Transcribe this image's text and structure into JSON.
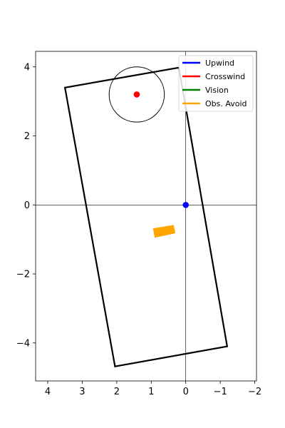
{
  "chart_data": {
    "type": "scatter",
    "title": "",
    "xlabel": "",
    "ylabel": "",
    "x_axis_inverted": true,
    "xlim": [
      4.35,
      -2.05
    ],
    "ylim": [
      -5.1,
      4.45
    ],
    "xticks": [
      4,
      3,
      2,
      1,
      0,
      -1,
      -2
    ],
    "yticks": [
      4,
      2,
      0,
      -2,
      -4
    ],
    "xtick_labels": [
      "4",
      "3",
      "2",
      "1",
      "0",
      "−1",
      "−2"
    ],
    "ytick_labels": [
      "4",
      "2",
      "0",
      "−2",
      "−4"
    ],
    "grid": false,
    "reference_lines": {
      "x": 0,
      "y": 0,
      "color": "#000000"
    },
    "boundary_polygon": {
      "color": "#000000",
      "points": [
        [
          3.5,
          3.4
        ],
        [
          0.2,
          3.98
        ],
        [
          -1.2,
          -4.1
        ],
        [
          2.05,
          -4.68
        ]
      ]
    },
    "circle": {
      "center": [
        1.42,
        3.2
      ],
      "radius": 0.8,
      "color": "#000000"
    },
    "points": [
      {
        "x": 1.42,
        "y": 3.2,
        "color": "#ff0000"
      },
      {
        "x": 0.0,
        "y": 0.0,
        "color": "#0000ff"
      }
    ],
    "obstacle": {
      "color": "#ffa500",
      "points": [
        [
          0.95,
          -0.68
        ],
        [
          0.35,
          -0.58
        ],
        [
          0.3,
          -0.82
        ],
        [
          0.9,
          -0.95
        ]
      ]
    },
    "legend": {
      "position": "top-right",
      "entries": [
        {
          "label": "Upwind",
          "color": "#0000ff"
        },
        {
          "label": "Crosswind",
          "color": "#ff0000"
        },
        {
          "label": "Vision",
          "color": "#008000"
        },
        {
          "label": "Obs. Avoid",
          "color": "#ffa500"
        }
      ]
    }
  }
}
